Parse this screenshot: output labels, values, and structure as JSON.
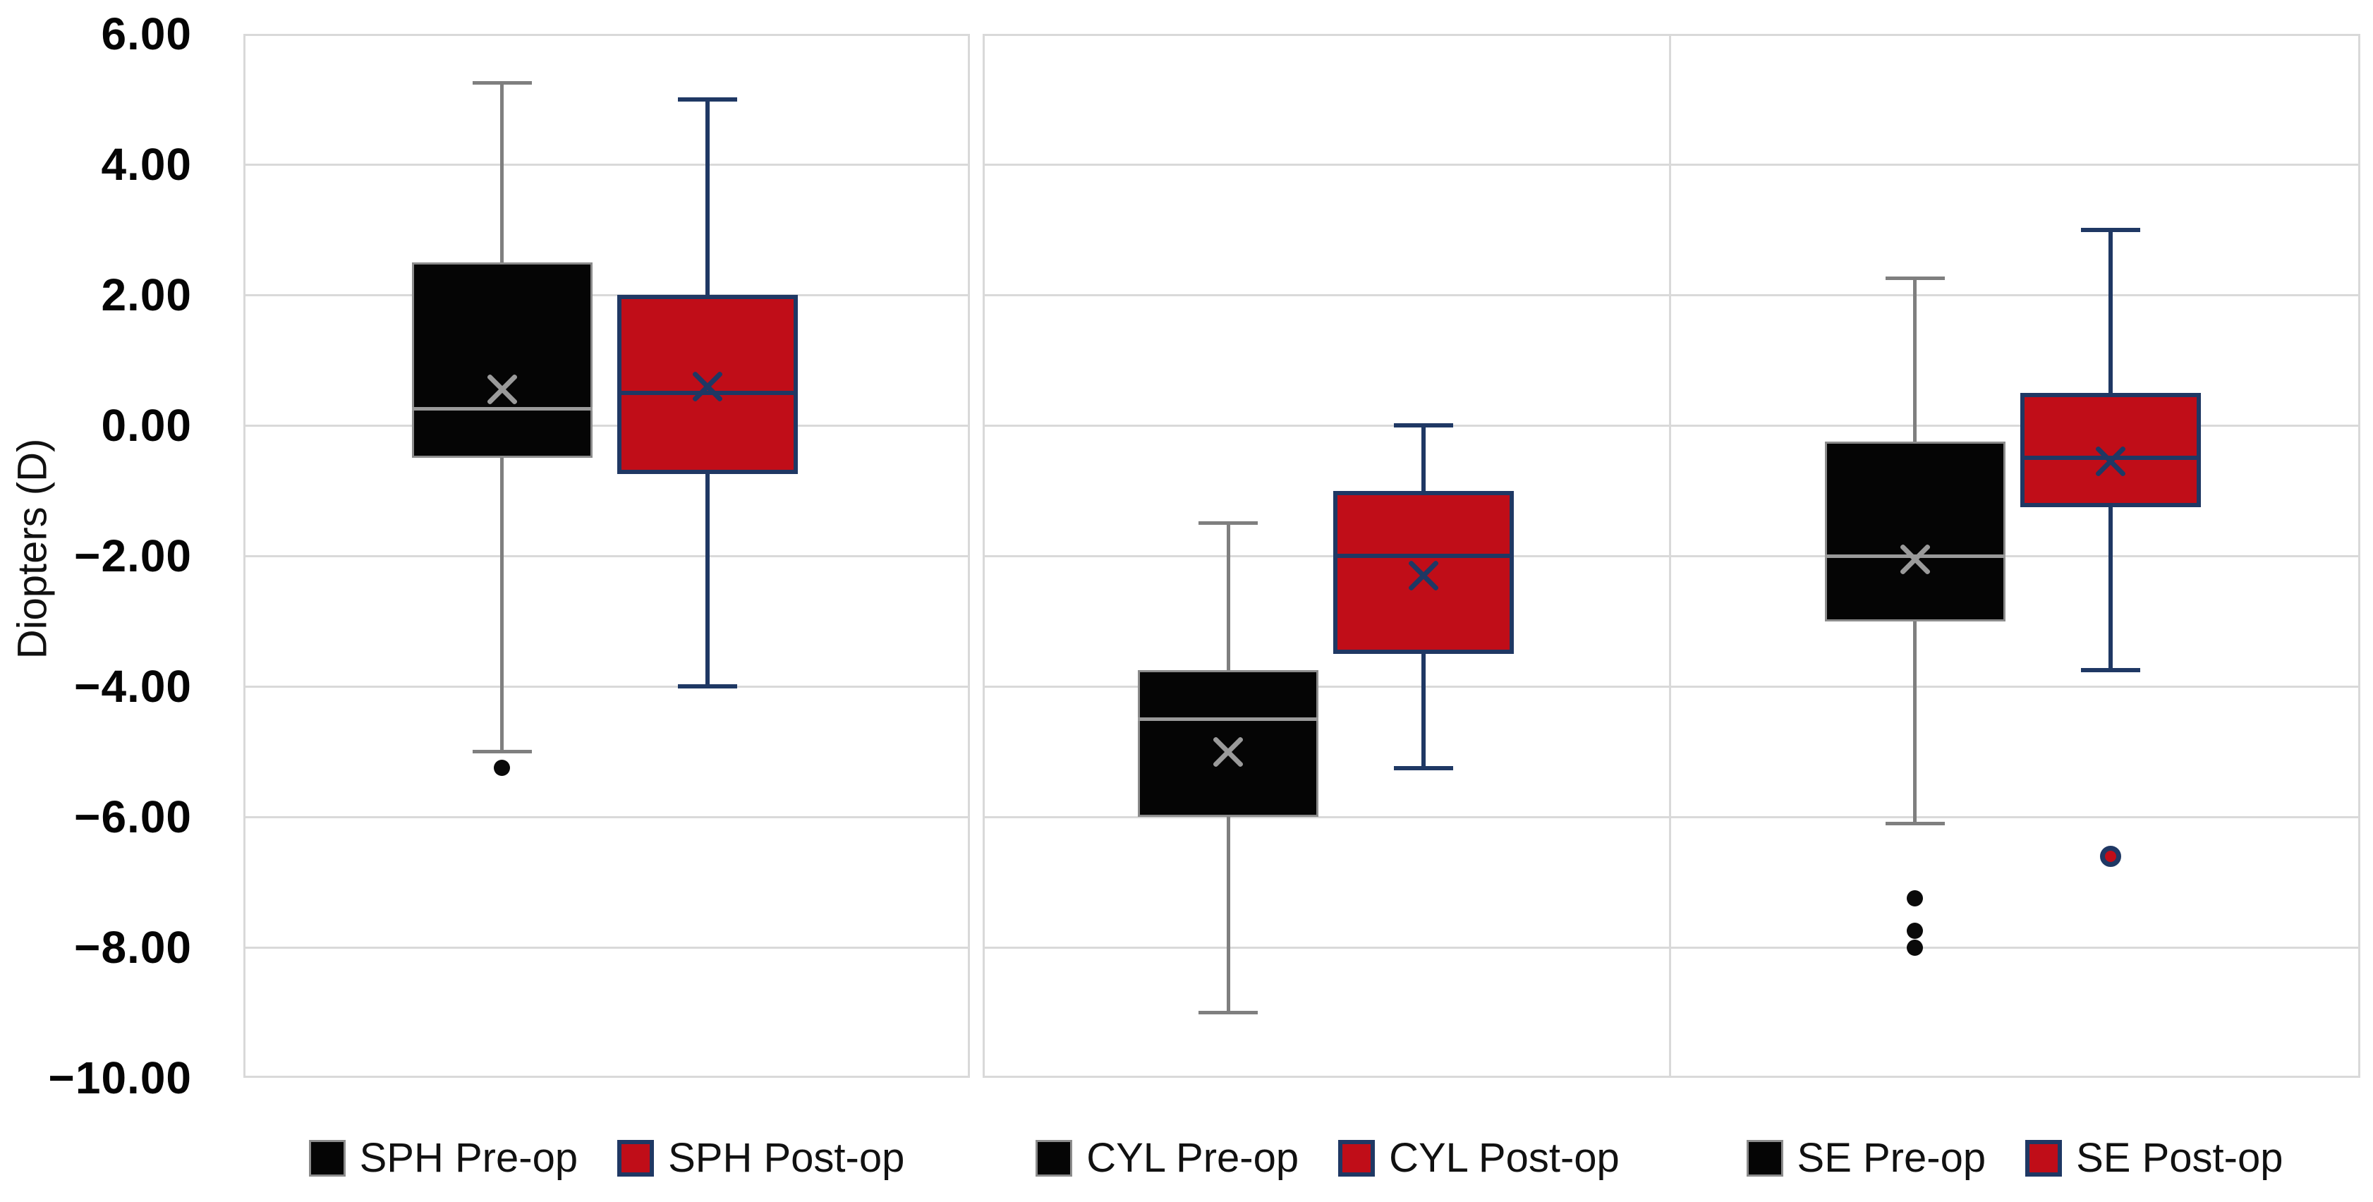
{
  "chart_data": {
    "type": "boxplot",
    "title": "",
    "ylabel": "Diopters (D)",
    "units": "D",
    "ylim": [
      -10,
      6
    ],
    "ytick_step": 2,
    "ytick_labels": [
      "6.00",
      "4.00",
      "2.00",
      "0.00",
      "−2.00",
      "−4.00",
      "−6.00",
      "−8.00",
      "−10.00"
    ],
    "grid": "horizontal",
    "legend_position": "bottom",
    "panels": [
      {
        "name": "SPH",
        "series": [
          {
            "name": "SPH Pre-op",
            "style": "pre",
            "whisker_high": 5.25,
            "q3": 2.5,
            "median": 0.25,
            "mean": 0.55,
            "q1": -0.5,
            "whisker_low": -5.0,
            "outliers": [
              -5.25
            ]
          },
          {
            "name": "SPH Post-op",
            "style": "post",
            "whisker_high": 5.0,
            "q3": 2.0,
            "median": 0.5,
            "mean": 0.6,
            "q1": -0.75,
            "whisker_low": -4.0,
            "outliers": []
          }
        ]
      },
      {
        "name": "CYL",
        "series": [
          {
            "name": "CYL Pre-op",
            "style": "pre",
            "whisker_high": -1.5,
            "q3": -3.75,
            "median": -4.5,
            "mean": -5.0,
            "q1": -6.0,
            "whisker_low": -9.0,
            "outliers": []
          },
          {
            "name": "CYL Post-op",
            "style": "post",
            "whisker_high": 0.0,
            "q3": -1.0,
            "median": -2.0,
            "mean": -2.3,
            "q1": -3.5,
            "whisker_low": -5.25,
            "outliers": []
          }
        ]
      },
      {
        "name": "SE",
        "series": [
          {
            "name": "SE Pre-op",
            "style": "pre",
            "whisker_high": 2.25,
            "q3": -0.25,
            "median": -2.0,
            "mean": -2.05,
            "q1": -3.0,
            "whisker_low": -6.1,
            "outliers": [
              -7.25,
              -7.75,
              -8.0
            ]
          },
          {
            "name": "SE Post-op",
            "style": "post",
            "whisker_high": 3.0,
            "q3": 0.5,
            "median": -0.5,
            "mean": -0.55,
            "q1": -1.25,
            "whisker_low": -3.75,
            "outliers": [
              -6.6
            ]
          }
        ]
      }
    ],
    "colors": {
      "pre_fill": "#050505",
      "pre_stroke": "#7F7F7F",
      "pre_median": "#9A9A9A",
      "post_fill": "#C00D18",
      "post_stroke": "#1F3864",
      "grid": "#D9D9D9",
      "text": "#000000"
    }
  }
}
